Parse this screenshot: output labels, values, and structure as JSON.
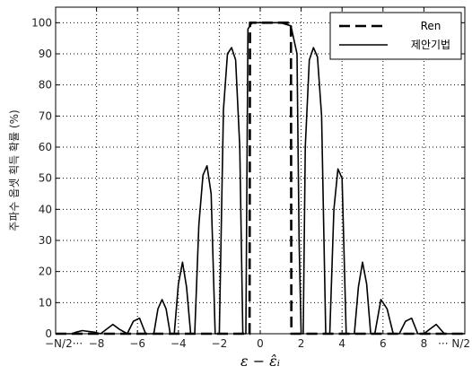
{
  "chart_data": {
    "type": "line",
    "xlabel": "ε − ε̂ᵢ",
    "ylabel": "주파수 옵셋 획득 확률 (%)",
    "ylim": [
      0,
      105
    ],
    "xlim": [
      -10,
      10
    ],
    "grid": true,
    "legend_position": "top-right",
    "y_ticks": [
      0,
      10,
      20,
      30,
      40,
      50,
      60,
      70,
      80,
      90,
      100
    ],
    "x_ticks": [
      {
        "value": -10,
        "label": "−N/2···"
      },
      {
        "value": -8,
        "label": "−8"
      },
      {
        "value": -6,
        "label": "−6"
      },
      {
        "value": -4,
        "label": "−4"
      },
      {
        "value": -2,
        "label": "−2"
      },
      {
        "value": 0,
        "label": "0"
      },
      {
        "value": 2,
        "label": "2"
      },
      {
        "value": 4,
        "label": "4"
      },
      {
        "value": 6,
        "label": "6"
      },
      {
        "value": 8,
        "label": "8"
      },
      {
        "value": 10,
        "label": "··· N/2"
      }
    ],
    "series": [
      {
        "name": "Ren",
        "style": "dashed",
        "color": "#000000",
        "x": [
          -10,
          -0.52,
          -0.5,
          1.5,
          1.52,
          10
        ],
        "y": [
          0,
          0,
          100,
          100,
          0,
          0
        ]
      },
      {
        "name": "제안기법",
        "style": "solid",
        "color": "#000000",
        "x": [
          -10,
          -9.2,
          -9,
          -8.7,
          -8.1,
          -7.8,
          -7.5,
          -7.2,
          -6.9,
          -6.5,
          -6.2,
          -5.9,
          -5.6,
          -5.2,
          -5.0,
          -4.8,
          -4.6,
          -4.4,
          -4.2,
          -4.0,
          -3.8,
          -3.6,
          -3.4,
          -3.2,
          -3.0,
          -2.8,
          -2.6,
          -2.4,
          -2.2,
          -2.0,
          -1.8,
          -1.6,
          -1.4,
          -1.2,
          -1.0,
          -0.85,
          -0.8,
          -0.7,
          -0.6,
          -0.4,
          0,
          0.5,
          1.0,
          1.5,
          1.8,
          1.9,
          2.0,
          2.1,
          2.2,
          2.4,
          2.6,
          2.8,
          3.0,
          3.2,
          3.4,
          3.6,
          3.8,
          4.0,
          4.2,
          4.4,
          4.6,
          4.8,
          5.0,
          5.2,
          5.4,
          5.6,
          5.9,
          6.2,
          6.5,
          6.8,
          7.1,
          7.4,
          7.7,
          8.0,
          8.3,
          8.6,
          9.0,
          10
        ],
        "y": [
          0,
          0,
          0.5,
          1,
          0.5,
          0,
          1.5,
          3,
          1.5,
          0,
          4,
          5,
          0,
          0,
          8,
          11,
          8,
          0,
          0,
          16,
          23,
          15,
          0,
          0,
          35,
          51,
          54,
          45,
          0,
          0,
          72,
          90,
          92,
          88,
          60,
          0,
          0,
          0,
          98,
          100,
          100,
          100,
          100,
          99,
          90,
          30,
          0,
          0,
          60,
          88,
          92,
          89,
          70,
          0,
          0,
          40,
          53,
          50,
          0,
          0,
          0,
          15,
          23,
          16,
          0,
          0,
          11,
          8,
          0,
          0,
          4,
          5,
          0,
          0,
          1.5,
          3,
          0,
          0
        ]
      }
    ]
  }
}
